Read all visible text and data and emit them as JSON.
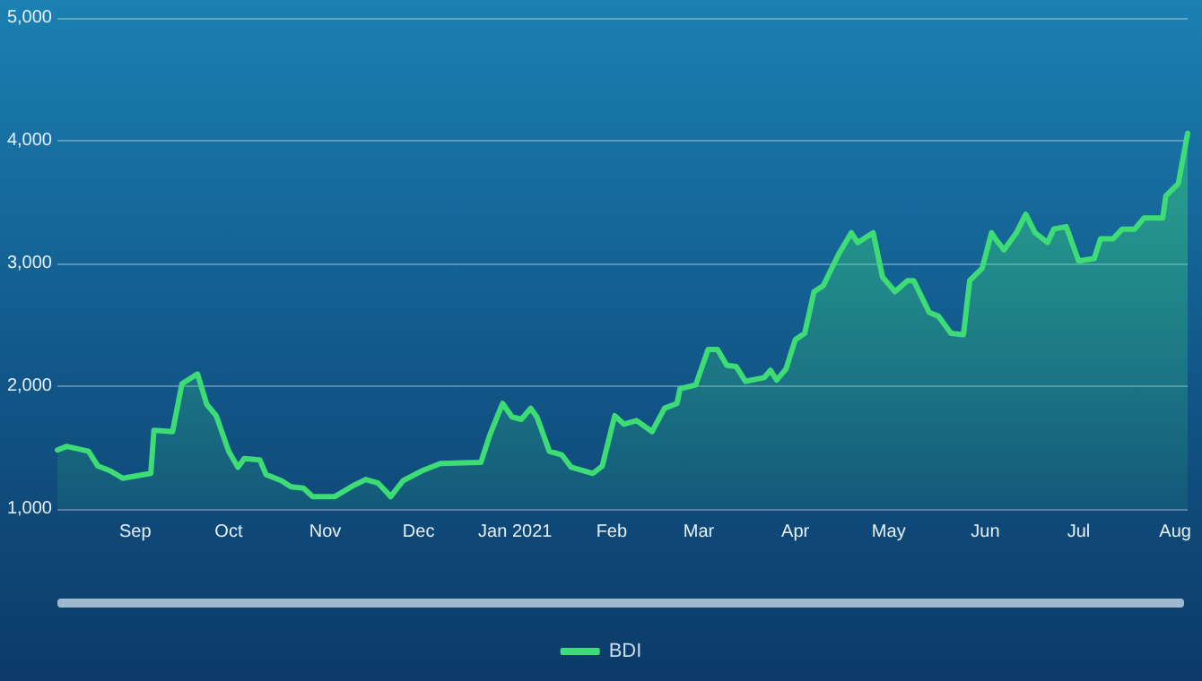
{
  "chart_data": {
    "type": "area",
    "grid": "y",
    "legend": "bottom",
    "marker": "none",
    "line_style": "solid",
    "x": [
      "2020-08-07",
      "2020-08-10",
      "2020-08-17",
      "2020-08-20",
      "2020-08-24",
      "2020-08-28",
      "2020-09-06",
      "2020-09-07",
      "2020-09-13",
      "2020-09-16",
      "2020-09-21",
      "2020-09-24",
      "2020-09-27",
      "2020-10-01",
      "2020-10-04",
      "2020-10-06",
      "2020-10-11",
      "2020-10-13",
      "2020-10-18",
      "2020-10-21",
      "2020-10-25",
      "2020-10-28",
      "2020-11-04",
      "2020-11-10",
      "2020-11-14",
      "2020-11-18",
      "2020-11-21",
      "2020-11-22",
      "2020-11-26",
      "2020-12-02",
      "2020-12-08",
      "2020-12-21",
      "2020-12-24",
      "2020-12-28",
      "2020-12-31",
      "2021-01-03",
      "2021-01-06",
      "2021-01-08",
      "2021-01-12",
      "2021-01-16",
      "2021-01-19",
      "2021-01-26",
      "2021-01-29",
      "2021-02-02",
      "2021-02-05",
      "2021-02-09",
      "2021-02-14",
      "2021-02-18",
      "2021-02-22",
      "2021-02-23",
      "2021-02-28",
      "2021-03-04",
      "2021-03-07",
      "2021-03-10",
      "2021-03-13",
      "2021-03-16",
      "2021-03-22",
      "2021-03-24",
      "2021-03-26",
      "2021-03-29",
      "2021-04-01",
      "2021-04-04",
      "2021-04-07",
      "2021-04-10",
      "2021-04-15",
      "2021-04-19",
      "2021-04-21",
      "2021-04-26",
      "2021-04-29",
      "2021-05-03",
      "2021-05-07",
      "2021-05-09",
      "2021-05-14",
      "2021-05-17",
      "2021-05-21",
      "2021-05-25",
      "2021-05-27",
      "2021-05-31",
      "2021-06-03",
      "2021-06-04",
      "2021-06-07",
      "2021-06-11",
      "2021-06-14",
      "2021-06-17",
      "2021-06-21",
      "2021-06-23",
      "2021-06-27",
      "2021-07-01",
      "2021-07-06",
      "2021-07-08",
      "2021-07-12",
      "2021-07-15",
      "2021-07-19",
      "2021-07-22",
      "2021-07-28",
      "2021-07-29",
      "2021-08-02",
      "2021-08-05"
    ],
    "series": [
      {
        "name": "BDI",
        "color": "#3ddc74",
        "values": [
          1480,
          1510,
          1470,
          1350,
          1310,
          1250,
          1290,
          1640,
          1630,
          2020,
          2100,
          1850,
          1760,
          1470,
          1340,
          1410,
          1400,
          1280,
          1230,
          1180,
          1170,
          1100,
          1100,
          1190,
          1240,
          1210,
          1130,
          1100,
          1230,
          1310,
          1370,
          1380,
          1610,
          1860,
          1750,
          1730,
          1820,
          1750,
          1470,
          1440,
          1340,
          1290,
          1350,
          1760,
          1690,
          1720,
          1630,
          1820,
          1860,
          1980,
          2010,
          2300,
          2300,
          2170,
          2160,
          2040,
          2070,
          2130,
          2050,
          2140,
          2380,
          2430,
          2770,
          2820,
          3080,
          3250,
          3170,
          3250,
          2890,
          2770,
          2860,
          2860,
          2600,
          2570,
          2430,
          2420,
          2860,
          2960,
          3250,
          3210,
          3110,
          3250,
          3400,
          3250,
          3170,
          3280,
          3300,
          3020,
          3040,
          3200,
          3200,
          3280,
          3280,
          3370,
          3370,
          3550,
          3650,
          4060
        ]
      }
    ],
    "xlim": [
      "2020-08-07",
      "2021-08-05"
    ],
    "xticks": [
      {
        "value": "2020-09-01",
        "label": "Sep"
      },
      {
        "value": "2020-10-01",
        "label": "Oct"
      },
      {
        "value": "2020-11-01",
        "label": "Nov"
      },
      {
        "value": "2020-12-01",
        "label": "Dec"
      },
      {
        "value": "2021-01-01",
        "label": "Jan 2021"
      },
      {
        "value": "2021-02-01",
        "label": "Feb"
      },
      {
        "value": "2021-03-01",
        "label": "Mar"
      },
      {
        "value": "2021-04-01",
        "label": "Apr"
      },
      {
        "value": "2021-05-01",
        "label": "May"
      },
      {
        "value": "2021-06-01",
        "label": "Jun"
      },
      {
        "value": "2021-07-01",
        "label": "Jul"
      },
      {
        "value": "2021-08-01",
        "label": "Aug"
      }
    ],
    "ylim": [
      1000,
      5000
    ],
    "yticks": [
      {
        "value": 1000,
        "label": "1,000"
      },
      {
        "value": 2000,
        "label": "2,000"
      },
      {
        "value": 3000,
        "label": "3,000"
      },
      {
        "value": 4000,
        "label": "4,000"
      },
      {
        "value": 5000,
        "label": "5,000"
      }
    ]
  }
}
